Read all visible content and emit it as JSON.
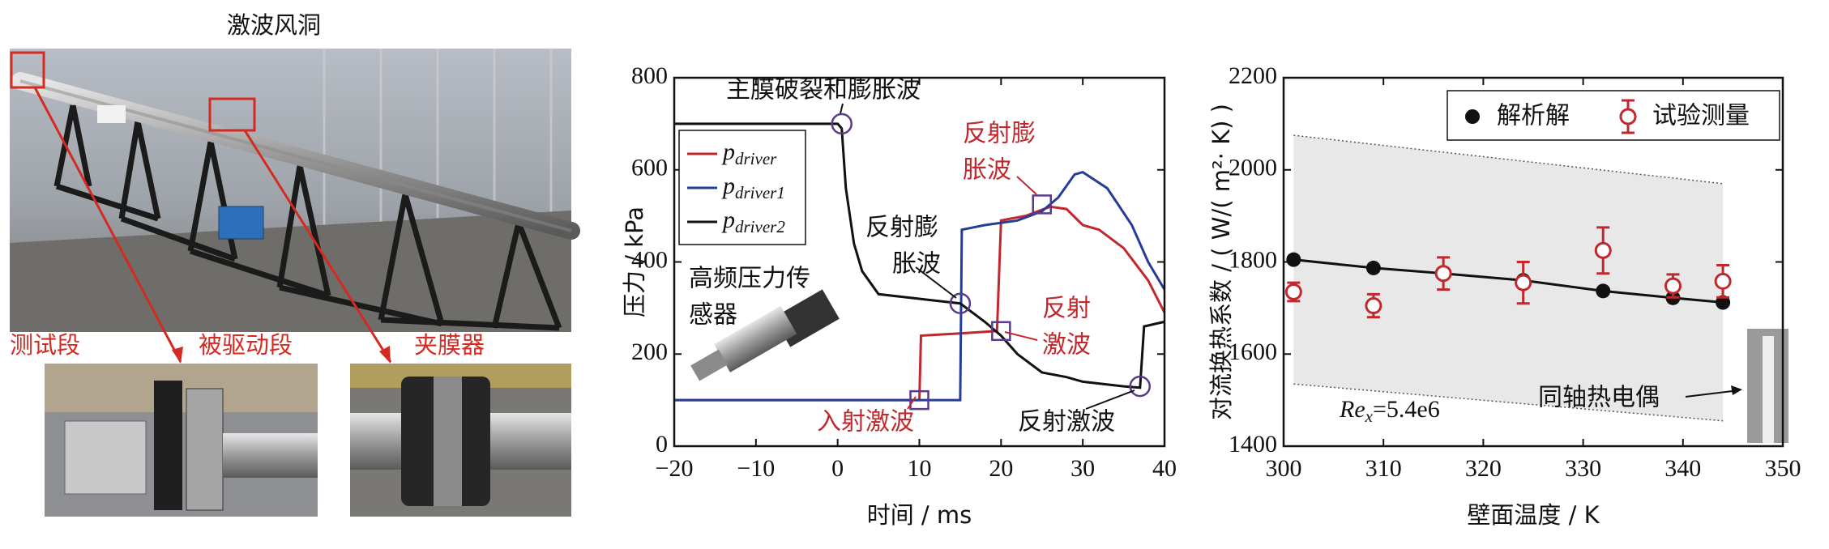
{
  "photo_panel": {
    "title": "激波风洞",
    "labels": [
      "测试段",
      "被驱动段",
      "夹膜器"
    ],
    "label_color": "#d42a22"
  },
  "chart_data": [
    {
      "type": "line",
      "xlabel": "时间 / ms",
      "ylabel": "压力 / kPa",
      "xlim": [
        -20,
        40
      ],
      "ylim": [
        0,
        800
      ],
      "xticks": [
        {
          "value": -20,
          "label": "−20"
        },
        {
          "value": -10,
          "label": "−10"
        },
        0,
        10,
        20,
        30,
        40
      ],
      "yticks": [
        0,
        200,
        400,
        600,
        800
      ],
      "series": [
        {
          "name": "p_driver",
          "color": "#c0282d",
          "x": [
            -20,
            10,
            10.2,
            15,
            19.5,
            20,
            23,
            26,
            28,
            30,
            32,
            35,
            38,
            40
          ],
          "values": [
            100,
            100,
            240,
            245,
            250,
            490,
            500,
            520,
            515,
            480,
            470,
            430,
            360,
            290
          ]
        },
        {
          "name": "p_driver1",
          "color": "#233d99",
          "x": [
            -20,
            15,
            15.2,
            18,
            22,
            25,
            27,
            29,
            30,
            33,
            36,
            38,
            40
          ],
          "values": [
            100,
            100,
            470,
            480,
            490,
            510,
            540,
            590,
            595,
            560,
            480,
            400,
            340
          ]
        },
        {
          "name": "p_driver2",
          "color": "#111111",
          "x": [
            -20,
            0,
            0.5,
            1,
            2,
            3,
            5,
            10,
            15,
            18,
            20,
            22,
            25,
            28,
            30,
            35,
            37,
            37.5,
            40
          ],
          "values": [
            700,
            700,
            690,
            560,
            440,
            380,
            330,
            320,
            310,
            270,
            240,
            200,
            160,
            150,
            140,
            130,
            127,
            260,
            270
          ]
        }
      ],
      "markers": [
        {
          "shape": "circle",
          "x": 0.5,
          "y": 700
        },
        {
          "shape": "circle",
          "x": 15,
          "y": 310
        },
        {
          "shape": "circle",
          "x": 37,
          "y": 130
        },
        {
          "shape": "square",
          "x": 10,
          "y": 100
        },
        {
          "shape": "square",
          "x": 20,
          "y": 250
        },
        {
          "shape": "square",
          "x": 25,
          "y": 525
        }
      ],
      "marker_color": "#5b3a8c",
      "annotations": [
        {
          "lines": [
            "主膜破裂和膨胀波"
          ],
          "color": "#111111"
        },
        {
          "lines": [
            "反射膨",
            "胀波"
          ],
          "color": "#c0282d"
        },
        {
          "lines": [
            "反射膨",
            "胀波"
          ],
          "color": "#111111"
        },
        {
          "lines": [
            "高频压力传",
            "感器"
          ],
          "color": "#111111"
        },
        {
          "lines": [
            "反射",
            "激波"
          ],
          "color": "#c0282d"
        },
        {
          "lines": [
            "入射激波"
          ],
          "color": "#c0282d"
        },
        {
          "lines": [
            "反射激波"
          ],
          "color": "#111111"
        }
      ]
    },
    {
      "type": "scatter",
      "xlabel": "壁面温度 / K",
      "ylabel": "对流换热系数 / ( W/( m²· K) )",
      "xlim": [
        300,
        350
      ],
      "ylim": [
        1400,
        2200
      ],
      "xticks": [
        300,
        310,
        320,
        330,
        340,
        350
      ],
      "yticks": [
        1400,
        1600,
        1800,
        2000,
        2200
      ],
      "band": {
        "x": [
          301,
          344
        ],
        "upper": [
          2075,
          1970
        ],
        "lower": [
          1535,
          1455
        ],
        "color": "#e8e8e8"
      },
      "legend": "upper right",
      "series": [
        {
          "name": "解析解",
          "color": "#111111",
          "style": "line-marker",
          "x": [
            301,
            309,
            316,
            324,
            332,
            339,
            344
          ],
          "values": [
            1805,
            1787,
            1775,
            1760,
            1737,
            1722,
            1712
          ]
        },
        {
          "name": "试验测量",
          "color": "#c0282d",
          "style": "errorbar",
          "x": [
            301,
            309,
            316,
            324,
            332,
            339,
            344
          ],
          "values": [
            1735,
            1705,
            1775,
            1755,
            1825,
            1748,
            1758
          ],
          "errors": [
            20,
            25,
            35,
            45,
            50,
            25,
            35
          ]
        }
      ],
      "annotations": [
        {
          "text": "Re_x=5.4e6"
        },
        {
          "text": "同轴热电偶"
        }
      ]
    }
  ]
}
